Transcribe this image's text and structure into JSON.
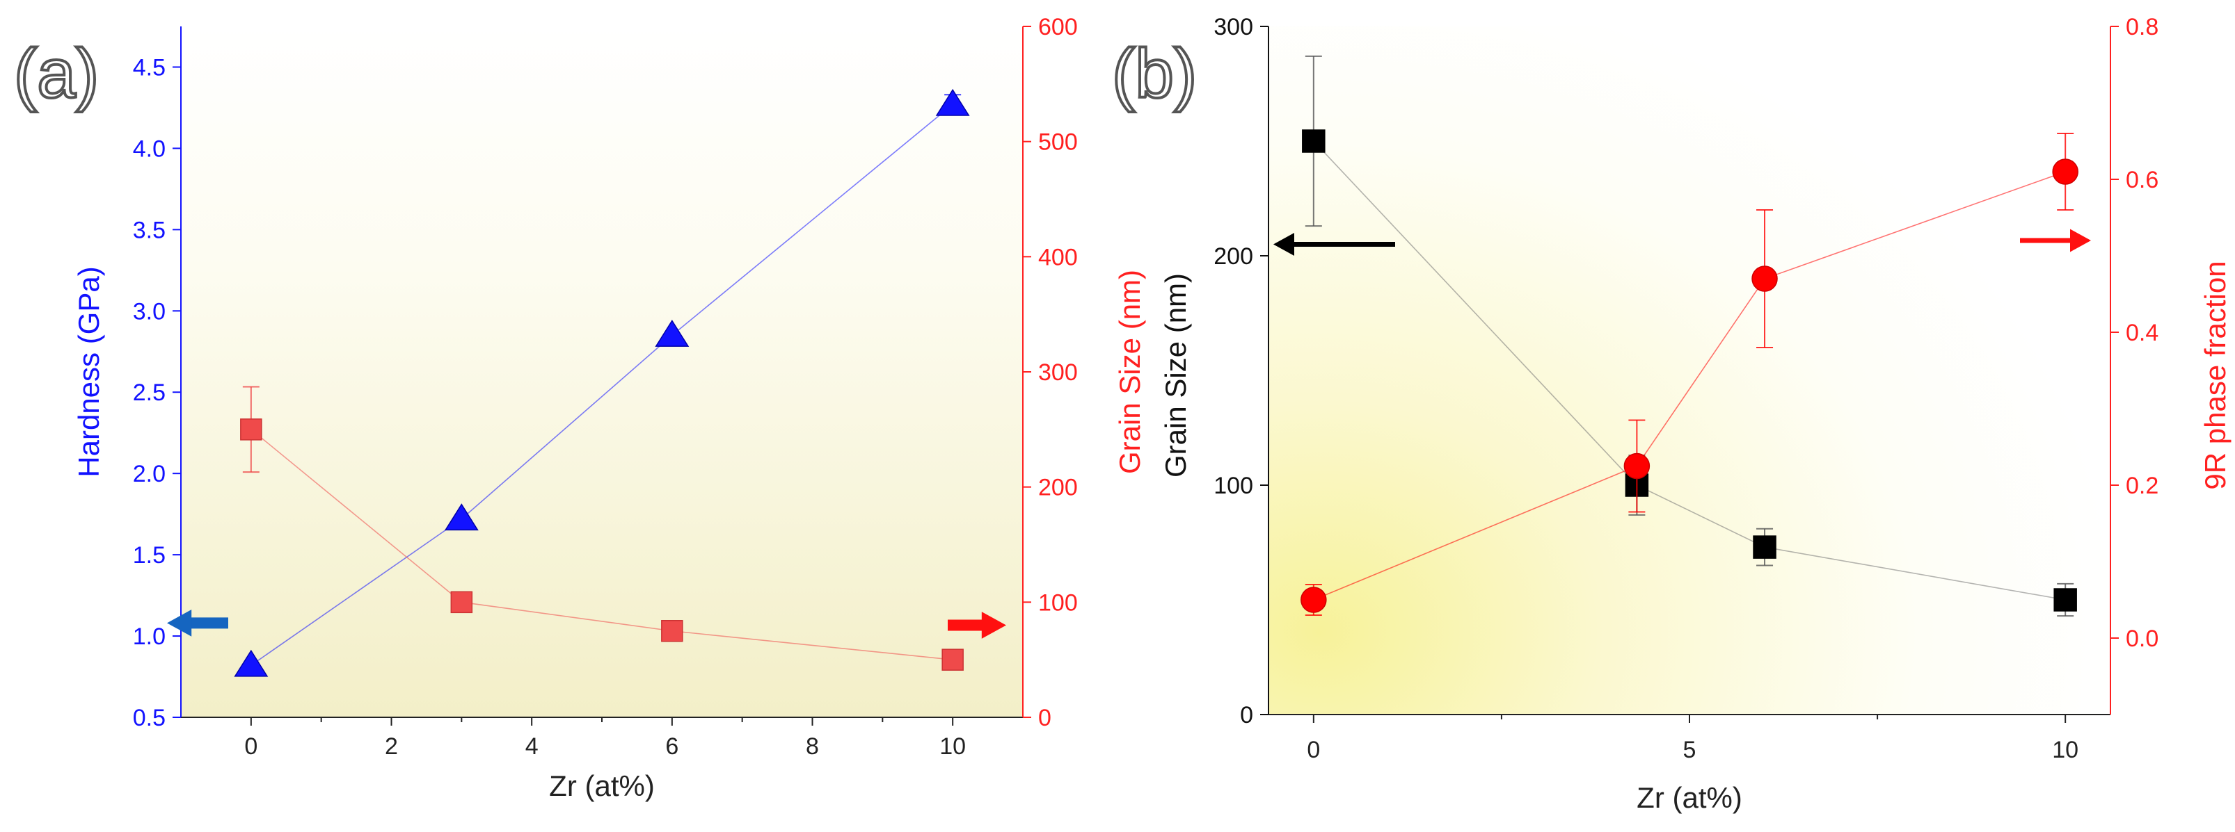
{
  "chart_data": [
    {
      "panel_label": "(a)",
      "type": "line",
      "xlabel": "Zr (at%)",
      "xlim": [
        -1,
        11
      ],
      "xticks": [
        0,
        2,
        4,
        6,
        8,
        10
      ],
      "y_left": {
        "label": "Hardness (GPa)",
        "ylim": [
          0.5,
          4.75
        ],
        "ticks": [
          0.5,
          1.0,
          1.5,
          2.0,
          2.5,
          3.0,
          3.5,
          4.0,
          4.5
        ],
        "tick_labels": [
          "0.5",
          "1.0",
          "1.5",
          "2.0",
          "2.5",
          "3.0",
          "3.5",
          "4.0",
          "4.5"
        ],
        "color": "#1212ff"
      },
      "y_right": {
        "label": "Grain Size (nm)",
        "ylim": [
          0,
          600
        ],
        "ticks": [
          0,
          100,
          200,
          300,
          400,
          500,
          600
        ],
        "tick_labels": [
          "0",
          "100",
          "200",
          "300",
          "400",
          "500",
          "600"
        ],
        "color": "#ff2020"
      },
      "series": [
        {
          "name": "Hardness",
          "axis": "left",
          "marker": "triangle",
          "color": "#1212ff",
          "x": [
            0,
            3,
            6,
            10
          ],
          "y": [
            0.82,
            1.72,
            2.85,
            4.27
          ],
          "err": [
            0,
            0,
            0,
            0.06
          ]
        },
        {
          "name": "Grain Size",
          "axis": "right",
          "marker": "square",
          "color": "#ef4a4a",
          "x": [
            0,
            3,
            6,
            10
          ],
          "y": [
            250,
            100,
            75,
            50
          ],
          "err": [
            37,
            0,
            0,
            0
          ]
        }
      ],
      "arrows": [
        {
          "axis": "left",
          "direction": "left",
          "color": "#1565c0"
        },
        {
          "axis": "right",
          "direction": "right",
          "color": "#ff1010"
        }
      ]
    },
    {
      "panel_label": "(b)",
      "type": "line",
      "xlabel": "Zr (at%)",
      "xlim": [
        -0.6,
        10.6
      ],
      "xticks": [
        0,
        5,
        10
      ],
      "y_left": {
        "label": "Grain Size (nm)",
        "ylim": [
          0,
          300
        ],
        "ticks": [
          0,
          100,
          200,
          300
        ],
        "tick_labels": [
          "0",
          "100",
          "200",
          "300"
        ],
        "color": "#111111"
      },
      "y_right": {
        "label": "9R phase fraction",
        "ylim": [
          -0.1,
          0.8
        ],
        "ticks": [
          0.0,
          0.2,
          0.4,
          0.6,
          0.8
        ],
        "tick_labels": [
          "0.0",
          "0.2",
          "0.4",
          "0.6",
          "0.8"
        ],
        "color": "#ff2020"
      },
      "series": [
        {
          "name": "Grain Size",
          "axis": "left",
          "marker": "square",
          "color": "#000000",
          "x": [
            0,
            4.3,
            6,
            10
          ],
          "y": [
            250,
            100,
            73,
            50
          ],
          "err": [
            37,
            13,
            8,
            7
          ]
        },
        {
          "name": "9R phase fraction",
          "axis": "right",
          "marker": "circle",
          "color": "#ff0000",
          "x": [
            0,
            4.3,
            6,
            10
          ],
          "y": [
            0.05,
            0.225,
            0.47,
            0.61
          ],
          "err": [
            0.02,
            0.06,
            0.09,
            0.05
          ]
        }
      ],
      "arrows": [
        {
          "axis": "left",
          "direction": "left",
          "color": "#000000"
        },
        {
          "axis": "right",
          "direction": "right",
          "color": "#ff1010"
        }
      ]
    }
  ]
}
